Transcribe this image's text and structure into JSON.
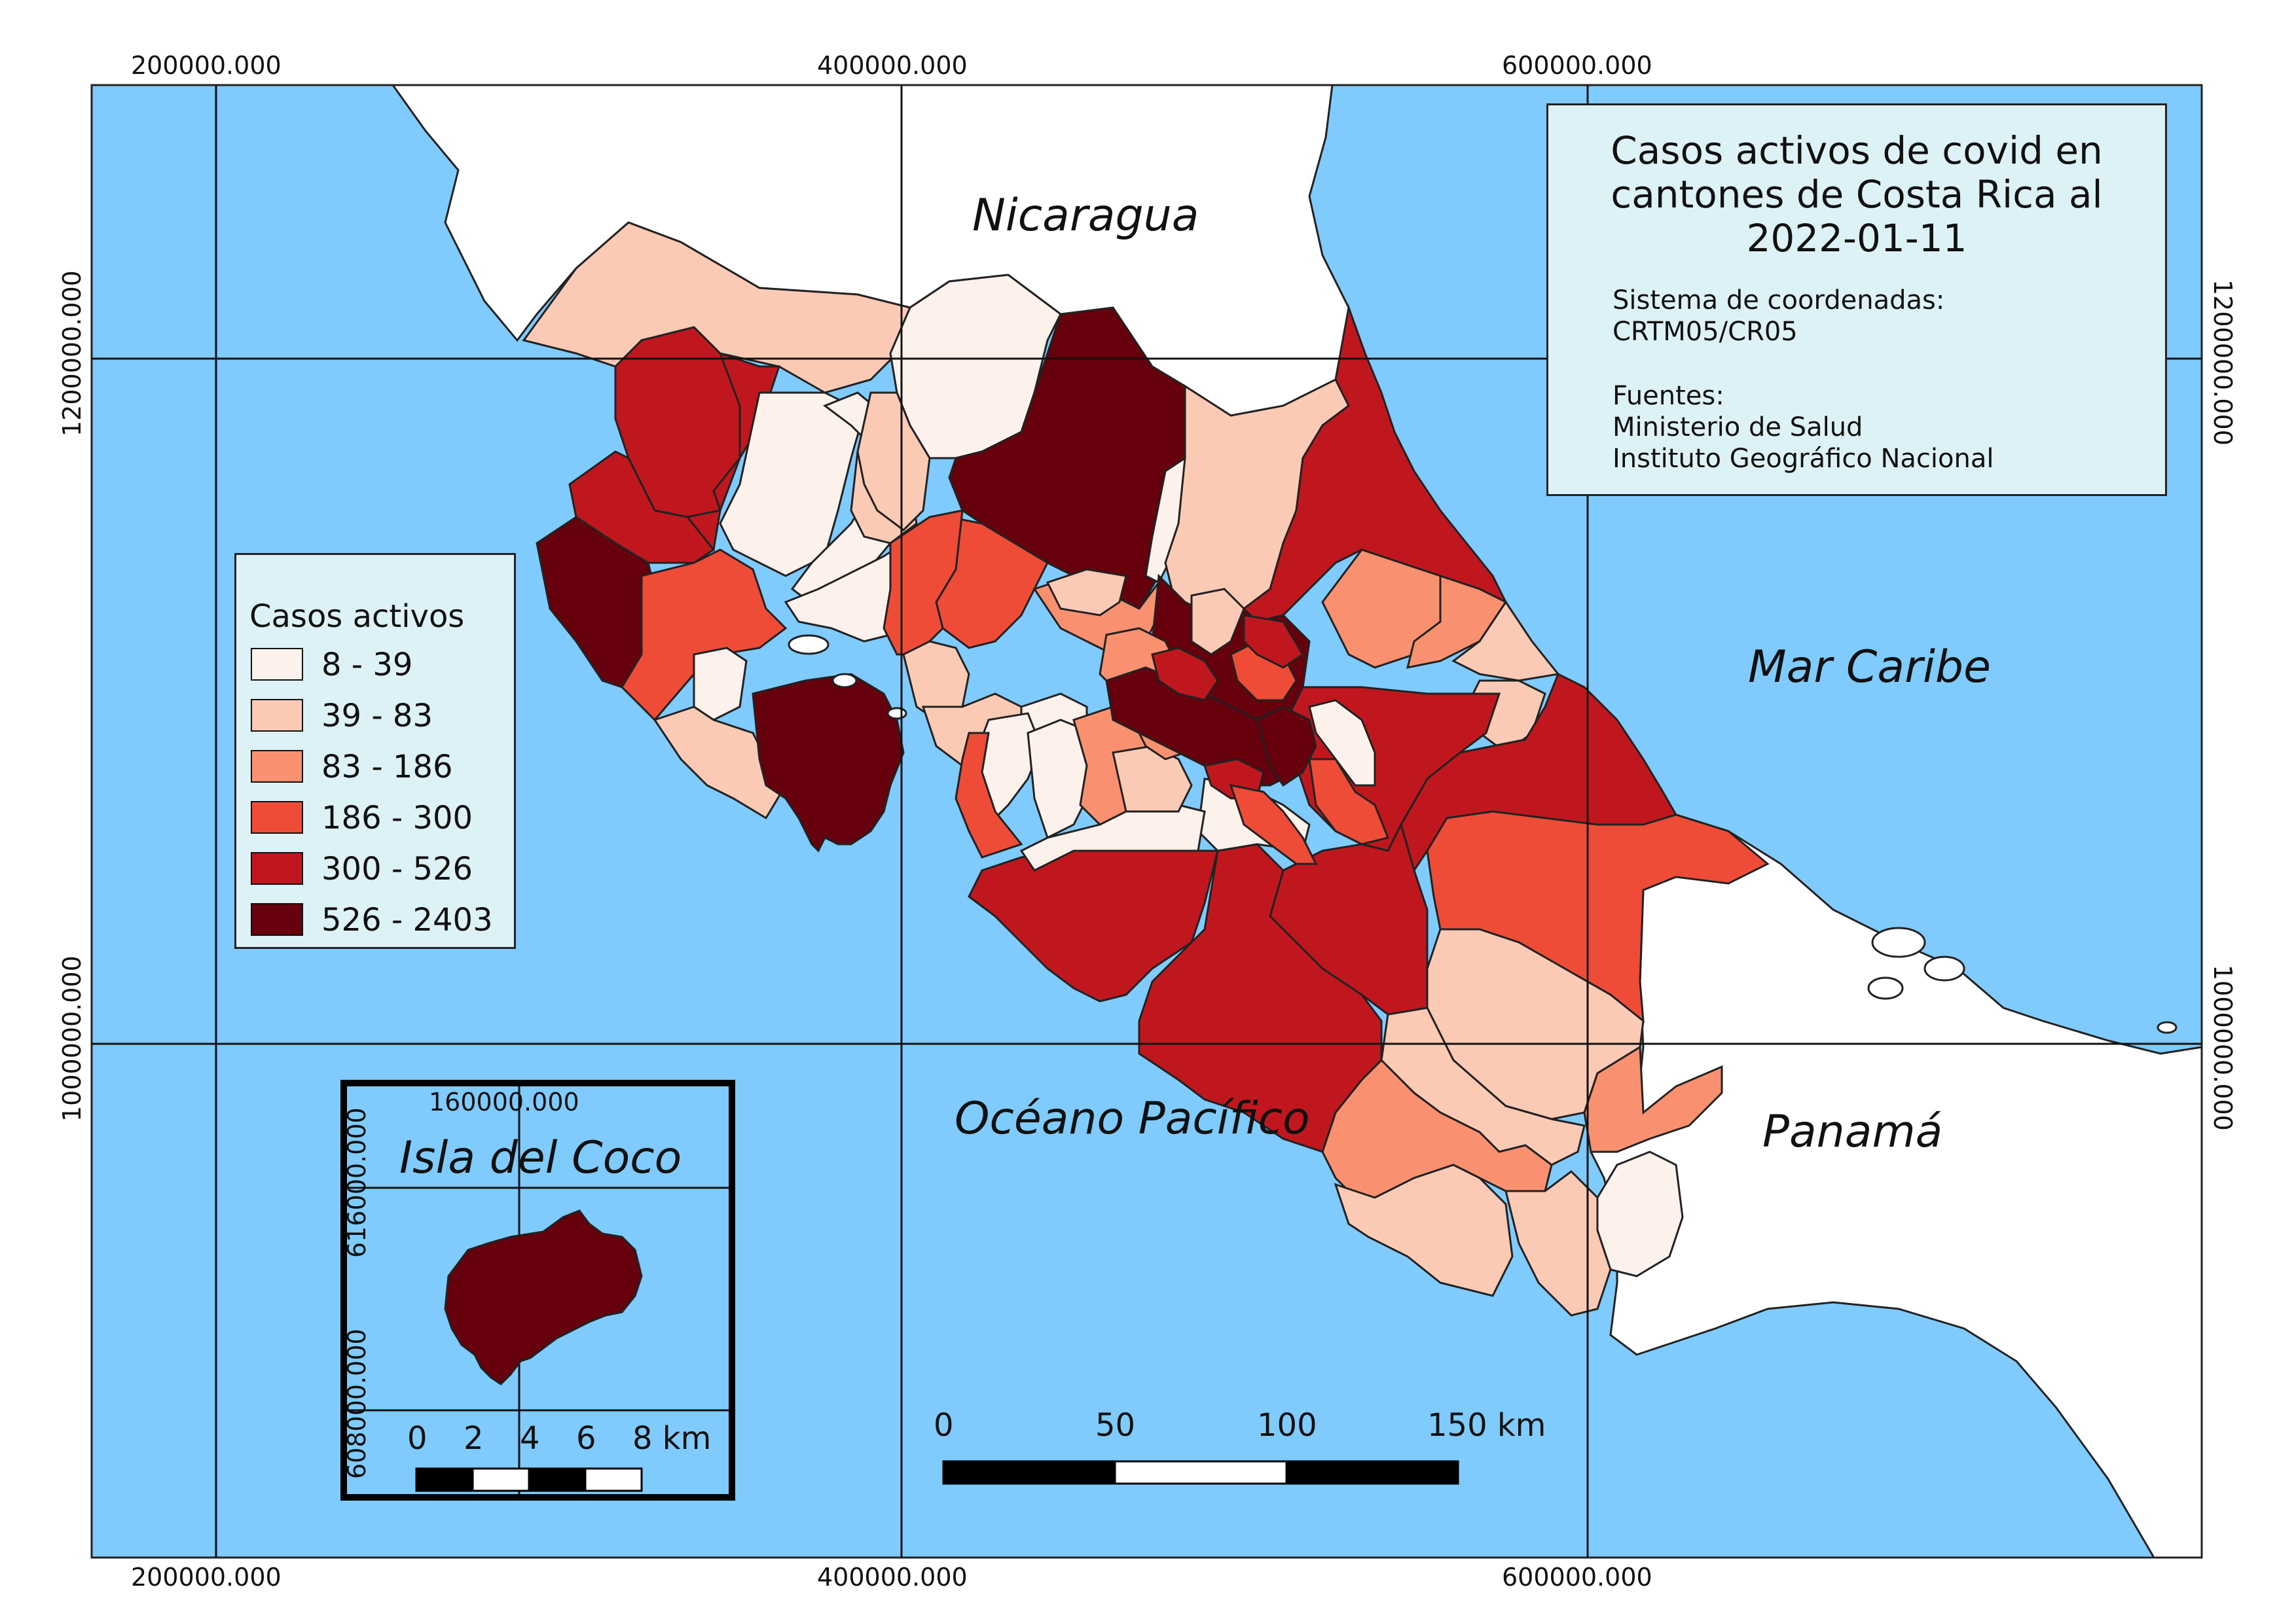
{
  "title": {
    "line1": "Casos activos de covid en",
    "line2": "cantones de Costa Rica al",
    "line3": "2022-01-11"
  },
  "crs": {
    "label": "Sistema de coordenadas:",
    "value": "CRTM05/CR05"
  },
  "sources": {
    "label": "Fuentes:",
    "items": [
      "Ministerio de Salud",
      "Instituto Geográfico Nacional"
    ]
  },
  "place_labels": {
    "north": "Nicaragua",
    "caribbean": "Mar Caribe",
    "pacific": "Océano Pacífico",
    "south_east": "Panamá",
    "inset": "Isla del Coco"
  },
  "legend": {
    "title": "Casos activos",
    "classes": [
      {
        "label": "8 - 39",
        "color": "#fdf1ec"
      },
      {
        "label": "39 - 83",
        "color": "#fbcab5"
      },
      {
        "label": "83 - 186",
        "color": "#f99170"
      },
      {
        "label": "186 - 300",
        "color": "#ef4c38"
      },
      {
        "label": "300 - 526",
        "color": "#c0171e"
      },
      {
        "label": "526 - 2403",
        "color": "#67000d"
      }
    ]
  },
  "grid": {
    "x_labels": [
      "200000.000",
      "400000.000",
      "600000.000"
    ],
    "y_labels": [
      "1200000.000",
      "1000000.000"
    ]
  },
  "inset": {
    "x_label": "160000.000",
    "y_labels": [
      "616000.000",
      "608000.000"
    ],
    "scale_labels": [
      "0",
      "2",
      "4",
      "6",
      "8 km"
    ]
  },
  "scalebar": {
    "labels": [
      "0",
      "50",
      "100",
      "150 km"
    ]
  },
  "colors": {
    "sea": "#80cbfd",
    "land_other": "#ffffff",
    "frame": "#222222",
    "panel_bg": "#ddf2f6"
  }
}
